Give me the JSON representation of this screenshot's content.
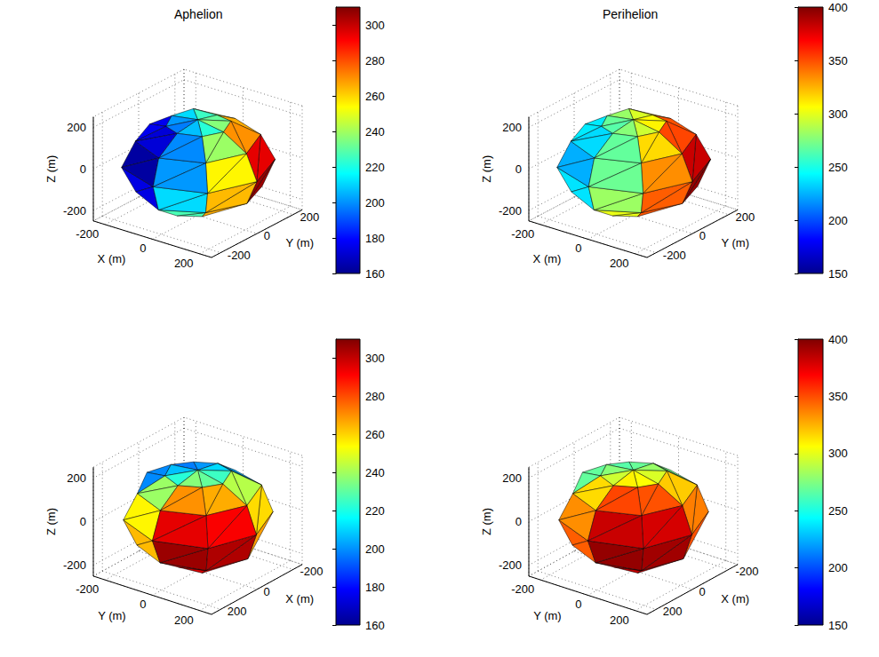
{
  "chart_data": [
    {
      "type": "mesh3d",
      "title": "Aphelion",
      "x_label": "X (m)",
      "y_label": "Y (m)",
      "z_label": "Z (m)",
      "xlim": [
        -250,
        250
      ],
      "ylim": [
        -250,
        250
      ],
      "zlim": [
        -250,
        250
      ],
      "xticks": [
        -200,
        0,
        200
      ],
      "yticks": [
        -200,
        0,
        200
      ],
      "zticks": [
        -200,
        0,
        200
      ],
      "grid": true,
      "vertex_latitudes": [
        -90,
        -60,
        -30,
        0,
        30,
        60,
        90
      ],
      "vertex_longitudes": [
        0,
        45,
        90,
        135,
        180,
        225,
        270,
        315
      ],
      "radius_m": [
        [
          205,
          205,
          205,
          205,
          205,
          205,
          205,
          205
        ],
        [
          215,
          228,
          220,
          232,
          218,
          225,
          230,
          222
        ],
        [
          240,
          252,
          245,
          236,
          248,
          242,
          250,
          238
        ],
        [
          250,
          262,
          248,
          255,
          244,
          258,
          246,
          252
        ],
        [
          238,
          246,
          240,
          250,
          235,
          244,
          248,
          236
        ],
        [
          218,
          225,
          212,
          228,
          220,
          215,
          226,
          222
        ],
        [
          210,
          210,
          210,
          210,
          210,
          210,
          210,
          210
        ]
      ],
      "temperature": [
        [
          272,
          268,
          259,
          248,
          238,
          235,
          246,
          262
        ],
        [
          297,
          293,
          270,
          231,
          203,
          199,
          227,
          266
        ],
        [
          306,
          303,
          268,
          215,
          178,
          174,
          211,
          264
        ],
        [
          295,
          292,
          259,
          205,
          168,
          163,
          201,
          255
        ],
        [
          270,
          266,
          243,
          204,
          176,
          172,
          199,
          239
        ],
        [
          236,
          231,
          225,
          211,
          201,
          197,
          207,
          222
        ]
      ],
      "colorbar": {
        "lim": [
          160,
          310
        ],
        "ticks": [
          160,
          180,
          200,
          220,
          240,
          260,
          280,
          300
        ]
      }
    },
    {
      "type": "mesh3d",
      "title": "Perihelion",
      "x_label": "X (m)",
      "y_label": "Y (m)",
      "z_label": "Z (m)",
      "xlim": [
        -250,
        250
      ],
      "ylim": [
        -250,
        250
      ],
      "zlim": [
        -250,
        250
      ],
      "xticks": [
        -200,
        0,
        200
      ],
      "yticks": [
        -200,
        0,
        200
      ],
      "zticks": [
        -200,
        0,
        200
      ],
      "grid": true,
      "vertex_latitudes": [
        -90,
        -60,
        -30,
        0,
        30,
        60,
        90
      ],
      "vertex_longitudes": [
        0,
        45,
        90,
        135,
        180,
        225,
        270,
        315
      ],
      "radius_m": [
        [
          205,
          205,
          205,
          205,
          205,
          205,
          205,
          205
        ],
        [
          215,
          228,
          220,
          232,
          218,
          225,
          230,
          222
        ],
        [
          240,
          252,
          245,
          236,
          248,
          242,
          250,
          238
        ],
        [
          250,
          262,
          248,
          255,
          244,
          258,
          246,
          252
        ],
        [
          238,
          246,
          240,
          250,
          235,
          244,
          248,
          236
        ],
        [
          218,
          225,
          212,
          228,
          220,
          215,
          226,
          222
        ],
        [
          210,
          210,
          210,
          210,
          210,
          210,
          210,
          210
        ]
      ],
      "temperature": [
        [
          354,
          351,
          342,
          326,
          313,
          310,
          322,
          340
        ],
        [
          384,
          381,
          352,
          305,
          272,
          268,
          301,
          348
        ],
        [
          395,
          392,
          349,
          286,
          241,
          237,
          282,
          346
        ],
        [
          382,
          379,
          338,
          274,
          228,
          224,
          270,
          334
        ],
        [
          352,
          349,
          319,
          272,
          239,
          235,
          268,
          315
        ],
        [
          309,
          306,
          297,
          281,
          269,
          265,
          277,
          294
        ]
      ],
      "colorbar": {
        "lim": [
          150,
          400
        ],
        "ticks": [
          150,
          200,
          250,
          300,
          350,
          400
        ]
      }
    },
    {
      "type": "mesh3d",
      "x_label": "X (m)",
      "y_label": "Y (m)",
      "z_label": "Z (m)",
      "xlim": [
        -250,
        250
      ],
      "ylim": [
        -250,
        250
      ],
      "zlim": [
        -250,
        250
      ],
      "xticks": [
        -200,
        0,
        200
      ],
      "yticks": [
        -200,
        0,
        200
      ],
      "zticks": [
        -200,
        0,
        200
      ],
      "grid": true,
      "vertex_latitudes": [
        -90,
        -60,
        -30,
        0,
        30,
        60,
        90
      ],
      "vertex_longitudes": [
        0,
        45,
        90,
        135,
        180,
        225,
        270,
        315
      ],
      "radius_m": [
        [
          205,
          205,
          205,
          205,
          205,
          205,
          205,
          205
        ],
        [
          215,
          228,
          220,
          232,
          218,
          225,
          230,
          222
        ],
        [
          240,
          252,
          245,
          236,
          248,
          242,
          250,
          238
        ],
        [
          250,
          262,
          248,
          255,
          244,
          258,
          246,
          252
        ],
        [
          238,
          246,
          240,
          250,
          235,
          244,
          248,
          236
        ],
        [
          218,
          225,
          212,
          228,
          220,
          215,
          226,
          222
        ],
        [
          210,
          210,
          210,
          210,
          210,
          210,
          210,
          210
        ]
      ],
      "temperature": [
        [
          272,
          268,
          259,
          248,
          238,
          235,
          246,
          262
        ],
        [
          297,
          293,
          270,
          231,
          203,
          199,
          227,
          266
        ],
        [
          306,
          303,
          268,
          215,
          178,
          174,
          211,
          264
        ],
        [
          295,
          292,
          259,
          205,
          168,
          163,
          201,
          255
        ],
        [
          270,
          266,
          243,
          204,
          176,
          172,
          199,
          239
        ],
        [
          236,
          231,
          225,
          211,
          201,
          197,
          207,
          222
        ]
      ],
      "colorbar": {
        "lim": [
          160,
          310
        ],
        "ticks": [
          160,
          180,
          200,
          220,
          240,
          260,
          280,
          300
        ]
      }
    },
    {
      "type": "mesh3d",
      "x_label": "X (m)",
      "y_label": "Y (m)",
      "z_label": "Z (m)",
      "xlim": [
        -250,
        250
      ],
      "ylim": [
        -250,
        250
      ],
      "zlim": [
        -250,
        250
      ],
      "xticks": [
        -200,
        0,
        200
      ],
      "yticks": [
        -200,
        0,
        200
      ],
      "zticks": [
        -200,
        0,
        200
      ],
      "grid": true,
      "vertex_latitudes": [
        -90,
        -60,
        -30,
        0,
        30,
        60,
        90
      ],
      "vertex_longitudes": [
        0,
        45,
        90,
        135,
        180,
        225,
        270,
        315
      ],
      "radius_m": [
        [
          205,
          205,
          205,
          205,
          205,
          205,
          205,
          205
        ],
        [
          215,
          228,
          220,
          232,
          218,
          225,
          230,
          222
        ],
        [
          240,
          252,
          245,
          236,
          248,
          242,
          250,
          238
        ],
        [
          250,
          262,
          248,
          255,
          244,
          258,
          246,
          252
        ],
        [
          238,
          246,
          240,
          250,
          235,
          244,
          248,
          236
        ],
        [
          218,
          225,
          212,
          228,
          220,
          215,
          226,
          222
        ],
        [
          210,
          210,
          210,
          210,
          210,
          210,
          210,
          210
        ]
      ],
      "temperature": [
        [
          354,
          351,
          342,
          326,
          313,
          310,
          322,
          340
        ],
        [
          384,
          381,
          352,
          305,
          272,
          268,
          301,
          348
        ],
        [
          395,
          392,
          349,
          286,
          241,
          237,
          282,
          346
        ],
        [
          382,
          379,
          338,
          274,
          228,
          224,
          270,
          334
        ],
        [
          352,
          349,
          319,
          272,
          239,
          235,
          268,
          315
        ],
        [
          309,
          306,
          297,
          281,
          269,
          265,
          277,
          294
        ]
      ],
      "colorbar": {
        "lim": [
          150,
          400
        ],
        "ticks": [
          150,
          200,
          250,
          300,
          350,
          400
        ]
      }
    }
  ]
}
